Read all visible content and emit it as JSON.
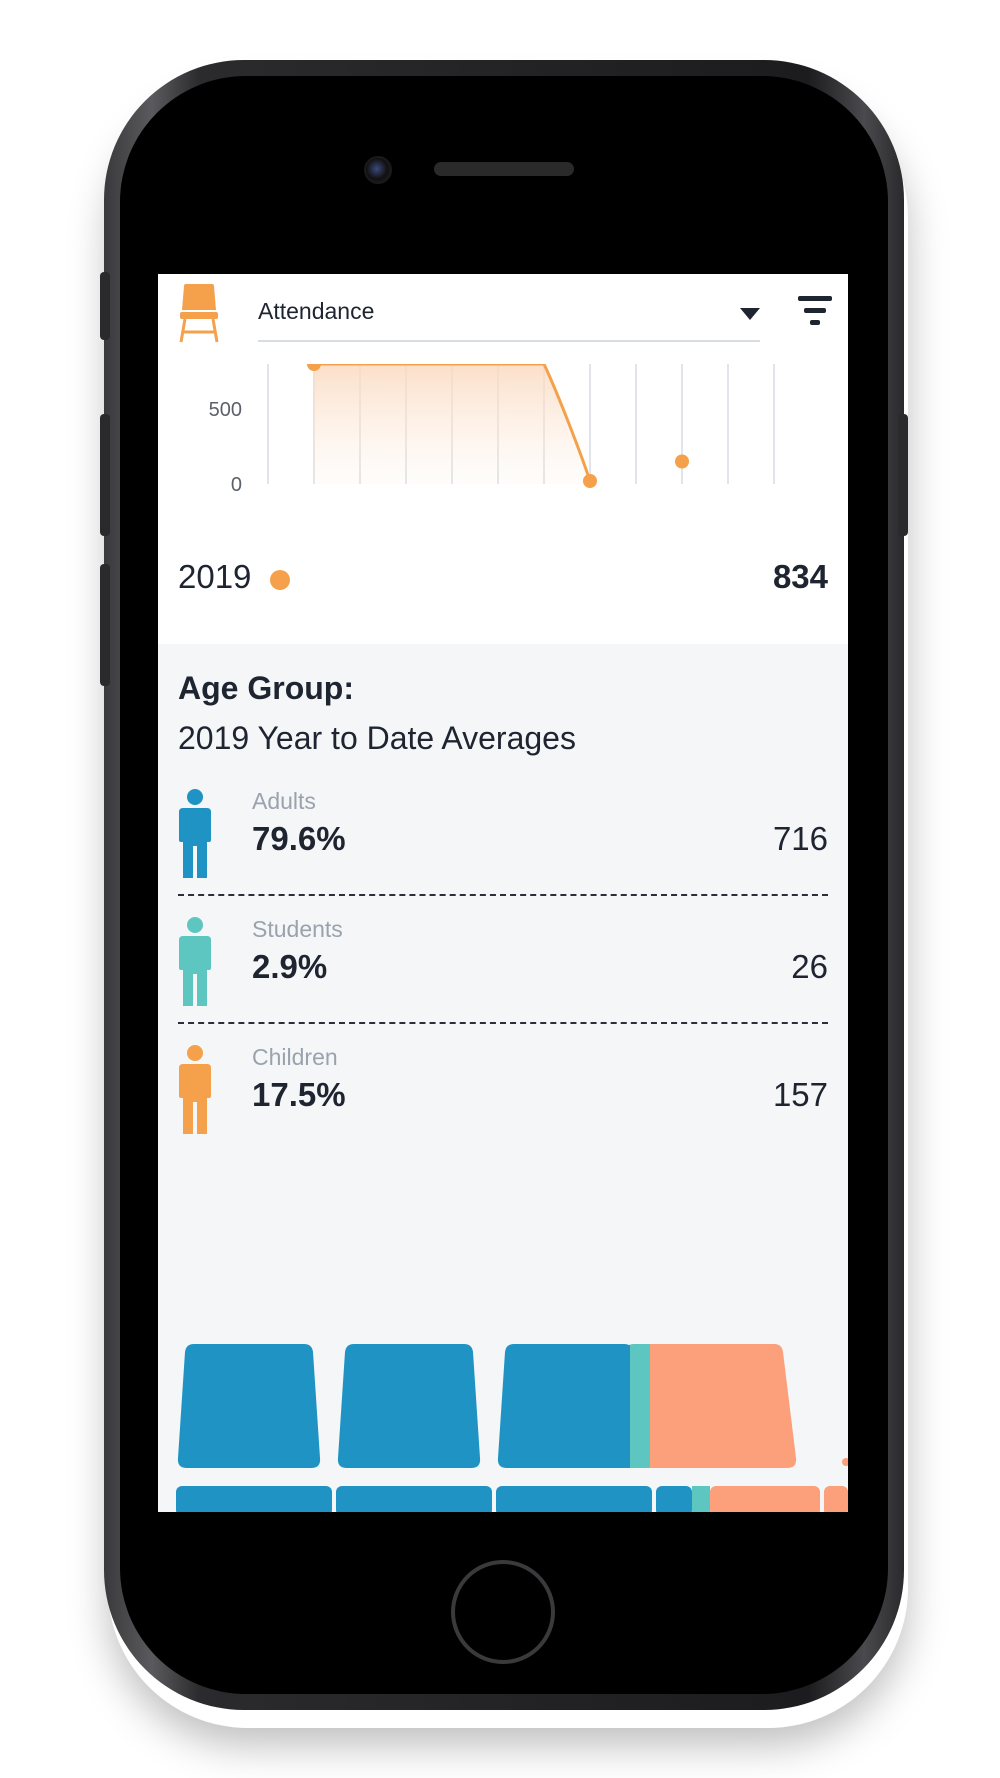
{
  "header": {
    "metric_select": {
      "value": "Attendance"
    },
    "icons": {
      "left": "chair-icon",
      "dropdown": "caret-down-icon",
      "right": "filter-icon"
    }
  },
  "chart_data": {
    "type": "line",
    "y_ticks": [
      "500",
      "0"
    ],
    "ylim": [
      0,
      800
    ],
    "series": [
      {
        "points": [
          {
            "x": 1,
            "y": 800
          },
          {
            "x": 6,
            "y": 800
          },
          {
            "x": 7,
            "y": 20
          },
          {
            "x": 9,
            "y": 150
          }
        ]
      }
    ],
    "grid": true,
    "accent_color": "#f5a04b"
  },
  "summary": {
    "year": "2019",
    "total": "834"
  },
  "age_group": {
    "title": "Age Group:",
    "subtitle": "2019 Year to Date Averages",
    "groups": [
      {
        "label": "Adults",
        "percent": "79.6%",
        "count": "716",
        "color": "#1f93c4",
        "icon": "person-icon"
      },
      {
        "label": "Students",
        "percent": "2.9%",
        "count": "26",
        "color": "#5ec6c1",
        "icon": "person-icon"
      },
      {
        "label": "Children",
        "percent": "17.5%",
        "count": "157",
        "color": "#f5a04b",
        "icon": "person-icon"
      }
    ]
  },
  "seat_colors": {
    "adults": "#1f93c4",
    "students": "#5ec6c1",
    "children": "#fba07a"
  }
}
